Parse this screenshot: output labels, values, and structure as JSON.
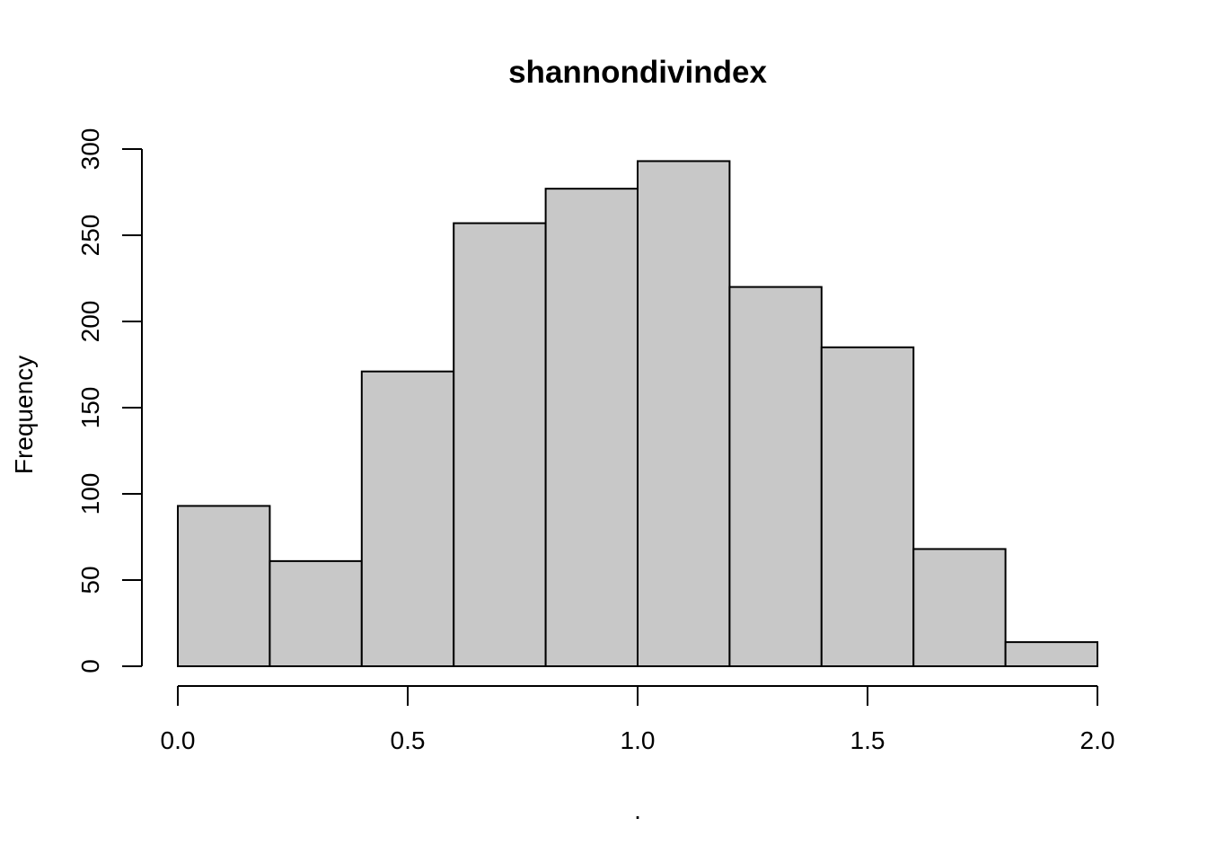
{
  "chart_data": {
    "type": "bar",
    "title": "shannondivindex",
    "xlabel": ".",
    "ylabel": "Frequency",
    "bins": [
      {
        "start": 0.0,
        "end": 0.2,
        "count": 93
      },
      {
        "start": 0.2,
        "end": 0.4,
        "count": 61
      },
      {
        "start": 0.4,
        "end": 0.6,
        "count": 171
      },
      {
        "start": 0.6,
        "end": 0.8,
        "count": 257
      },
      {
        "start": 0.8,
        "end": 1.0,
        "count": 277
      },
      {
        "start": 1.0,
        "end": 1.2,
        "count": 293
      },
      {
        "start": 1.2,
        "end": 1.4,
        "count": 220
      },
      {
        "start": 1.4,
        "end": 1.6,
        "count": 185
      },
      {
        "start": 1.6,
        "end": 1.8,
        "count": 68
      },
      {
        "start": 1.8,
        "end": 2.0,
        "count": 14
      }
    ],
    "xlim": [
      0.0,
      2.0
    ],
    "ylim": [
      0,
      300
    ],
    "x_ticks": [
      "0.0",
      "0.5",
      "1.0",
      "1.5",
      "2.0"
    ],
    "y_ticks": [
      "0",
      "50",
      "100",
      "150",
      "200",
      "250",
      "300"
    ],
    "grid": false,
    "legend": "none",
    "bar_fill": "#c8c8c8",
    "bar_stroke": "#000000"
  }
}
